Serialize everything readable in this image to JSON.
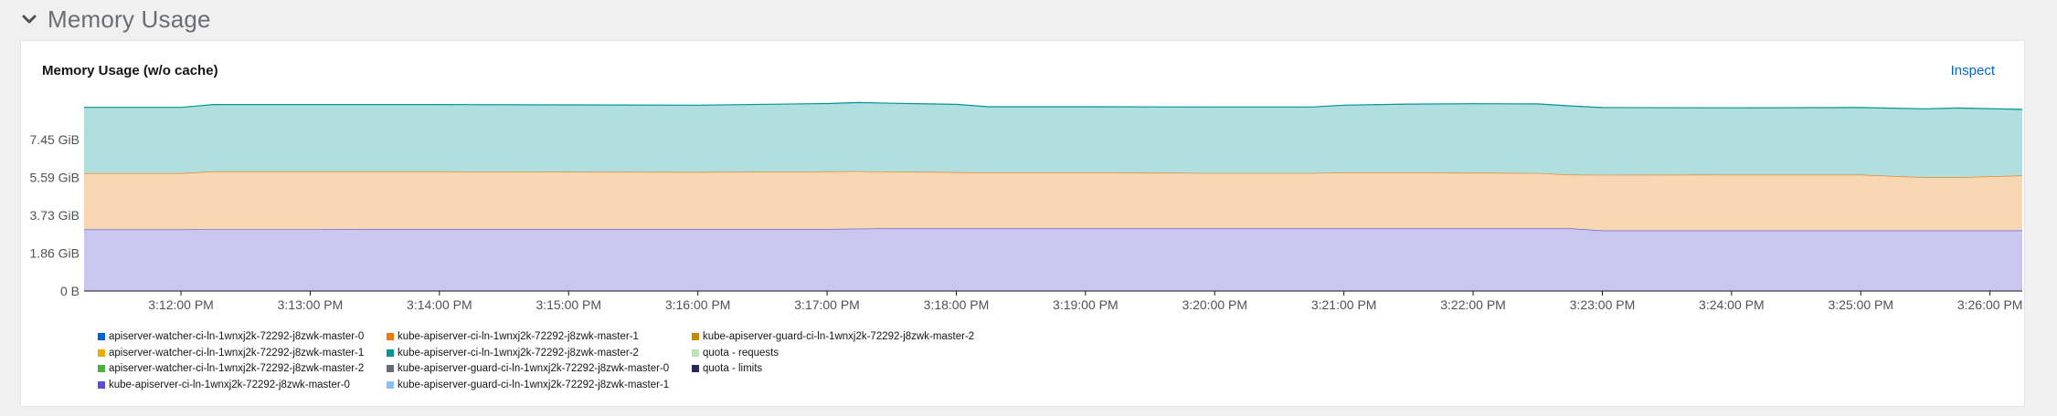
{
  "section": {
    "title": "Memory Usage",
    "collapse_icon": "chevron-down-icon"
  },
  "card": {
    "title": "Memory Usage (w/o cache)",
    "inspect_label": "Inspect"
  },
  "chart_data": {
    "type": "area",
    "stacked": true,
    "title": "Memory Usage (w/o cache)",
    "xlabel": "",
    "ylabel": "",
    "yunit": "GiB",
    "ylim": [
      0,
      9.6
    ],
    "y_ticks": [
      {
        "value": 0,
        "label": "0 B"
      },
      {
        "value": 1.86,
        "label": "1.86 GiB"
      },
      {
        "value": 3.73,
        "label": "3.73 GiB"
      },
      {
        "value": 5.59,
        "label": "5.59 GiB"
      },
      {
        "value": 7.45,
        "label": "7.45 GiB"
      }
    ],
    "x_ticks": [
      "3:12:00 PM",
      "3:13:00 PM",
      "3:14:00 PM",
      "3:15:00 PM",
      "3:16:00 PM",
      "3:17:00 PM",
      "3:18:00 PM",
      "3:19:00 PM",
      "3:20:00 PM",
      "3:21:00 PM",
      "3:22:00 PM",
      "3:23:00 PM",
      "3:24:00 PM",
      "3:25:00 PM",
      "3:26:00 PM"
    ],
    "x_range_minutes": [
      11.25,
      26.25
    ],
    "x_minutes": [
      11.25,
      12.0,
      12.25,
      13.0,
      14.0,
      15.0,
      16.0,
      17.0,
      17.25,
      17.5,
      18.0,
      18.25,
      19.0,
      20.0,
      20.5,
      20.75,
      21.0,
      21.5,
      22.0,
      22.5,
      22.75,
      23.0,
      24.0,
      25.0,
      25.5,
      25.75,
      26.25
    ],
    "series": [
      {
        "name": "kube-apiserver-ci-ln-1wnxj2k-72292-j8zwk-master-0",
        "color": "#5752d1",
        "fill": "#cbc6f0",
        "values": [
          3.03,
          3.03,
          3.04,
          3.04,
          3.05,
          3.05,
          3.05,
          3.05,
          3.07,
          3.08,
          3.08,
          3.08,
          3.08,
          3.08,
          3.08,
          3.08,
          3.08,
          3.08,
          3.08,
          3.08,
          3.08,
          2.98,
          2.98,
          2.98,
          2.98,
          2.98,
          2.98
        ]
      },
      {
        "name": "kube-apiserver-ci-ln-1wnxj2k-72292-j8zwk-master-1",
        "color": "#ec7a08",
        "fill": "#f8d7b4",
        "values": [
          2.76,
          2.76,
          2.84,
          2.84,
          2.83,
          2.81,
          2.8,
          2.83,
          2.82,
          2.79,
          2.76,
          2.74,
          2.74,
          2.72,
          2.72,
          2.72,
          2.74,
          2.74,
          2.73,
          2.72,
          2.64,
          2.73,
          2.74,
          2.74,
          2.61,
          2.61,
          2.7
        ]
      },
      {
        "name": "kube-apiserver-ci-ln-1wnxj2k-72292-j8zwk-master-2",
        "color": "#009596",
        "fill": "#b1dede",
        "values": [
          3.24,
          3.24,
          3.29,
          3.29,
          3.29,
          3.29,
          3.29,
          3.34,
          3.38,
          3.36,
          3.34,
          3.24,
          3.24,
          3.25,
          3.25,
          3.25,
          3.32,
          3.37,
          3.4,
          3.4,
          3.38,
          3.31,
          3.29,
          3.3,
          3.37,
          3.41,
          3.25
        ]
      }
    ],
    "legend": {
      "placement": "bottom-left",
      "columns": [
        [
          {
            "label": "apiserver-watcher-ci-ln-1wnxj2k-72292-j8zwk-master-0",
            "color": "#06c"
          },
          {
            "label": "apiserver-watcher-ci-ln-1wnxj2k-72292-j8zwk-master-1",
            "color": "#f0ab00"
          },
          {
            "label": "apiserver-watcher-ci-ln-1wnxj2k-72292-j8zwk-master-2",
            "color": "#4cb140"
          },
          {
            "label": "kube-apiserver-ci-ln-1wnxj2k-72292-j8zwk-master-0",
            "color": "#5752d1"
          }
        ],
        [
          {
            "label": "kube-apiserver-ci-ln-1wnxj2k-72292-j8zwk-master-1",
            "color": "#ec7a08"
          },
          {
            "label": "kube-apiserver-ci-ln-1wnxj2k-72292-j8zwk-master-2",
            "color": "#009596"
          },
          {
            "label": "kube-apiserver-guard-ci-ln-1wnxj2k-72292-j8zwk-master-0",
            "color": "#6a6e73"
          },
          {
            "label": "kube-apiserver-guard-ci-ln-1wnxj2k-72292-j8zwk-master-1",
            "color": "#8bc1f7"
          }
        ],
        [
          {
            "label": "kube-apiserver-guard-ci-ln-1wnxj2k-72292-j8zwk-master-2",
            "color": "#c58c00"
          },
          {
            "label": "quota - requests",
            "color": "#bde2b9"
          },
          {
            "label": "quota - limits",
            "color": "#2a265f"
          }
        ]
      ]
    }
  }
}
